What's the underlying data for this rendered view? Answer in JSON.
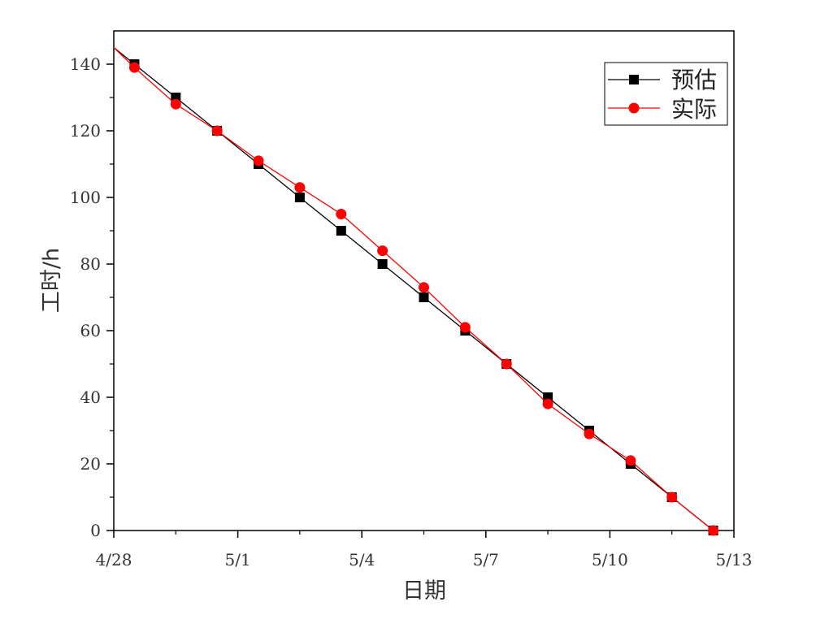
{
  "chart_data": {
    "type": "line",
    "title": "",
    "xlabel": "日期",
    "ylabel": "工时/h",
    "xlim": [
      "4/28",
      "5/13"
    ],
    "ylim": [
      0,
      150
    ],
    "x_ticks": [
      "4/28",
      "5/1",
      "5/4",
      "5/7",
      "5/10",
      "5/13"
    ],
    "y_ticks": [
      0,
      20,
      40,
      60,
      80,
      100,
      120,
      140
    ],
    "grid": false,
    "legend_position": "top-right",
    "series": [
      {
        "name": "预估",
        "color": "#000000",
        "marker": "square",
        "x": [
          "4/28 00:00",
          "4/28 12:00",
          "4/29 12:00",
          "4/30 12:00",
          "5/1 12:00",
          "5/2 12:00",
          "5/3 12:00",
          "5/4 12:00",
          "5/5 12:00",
          "5/6 12:00",
          "5/7 12:00",
          "5/8 12:00",
          "5/9 12:00",
          "5/10 12:00",
          "5/11 12:00",
          "5/12 12:00"
        ],
        "values": [
          145,
          140,
          130,
          120,
          110,
          100,
          90,
          80,
          70,
          60,
          50,
          40,
          30,
          20,
          10,
          0
        ]
      },
      {
        "name": "实际",
        "color": "#ff0000",
        "marker": "circle",
        "x": [
          "4/28 00:00",
          "4/28 12:00",
          "4/29 12:00",
          "4/30 12:00",
          "5/1 12:00",
          "5/2 12:00",
          "5/3 12:00",
          "5/4 12:00",
          "5/5 12:00",
          "5/6 12:00",
          "5/7 12:00",
          "5/8 12:00",
          "5/9 12:00",
          "5/10 12:00",
          "5/11 12:00",
          "5/12 12:00"
        ],
        "values": [
          145,
          139,
          128,
          120,
          111,
          103,
          95,
          84,
          73,
          61,
          50,
          38,
          29,
          21,
          10,
          0
        ]
      }
    ]
  }
}
